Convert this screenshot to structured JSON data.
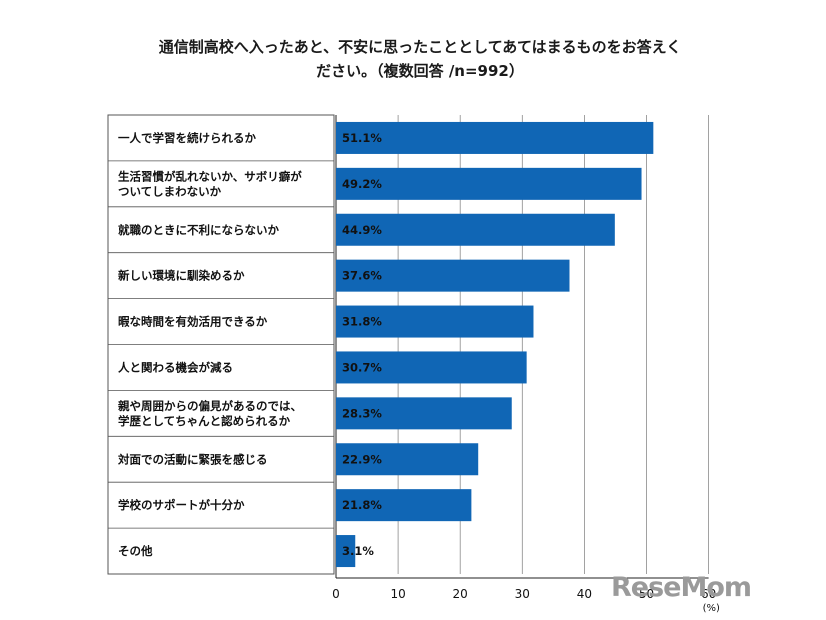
{
  "title_line1": "通信制高校へ入ったあと、不安に思ったこととしてあてはまるものをお答えく",
  "title_line2": "ださい。（複数回答 /n=992）",
  "logo_text": "ReseMom",
  "colors": {
    "bar": "#1066b5",
    "grid": "#8a8a8a",
    "box": "#555555"
  },
  "chart_data": {
    "type": "bar",
    "orientation": "horizontal",
    "categories": [
      "一人で学習を続けられるか",
      "生活習慣が乱れないか、サボリ癖が\nついてしまわないか",
      "就職のときに不利にならないか",
      "新しい環境に馴染めるか",
      "暇な時間を有効活用できるか",
      "人と関わる機会が減る",
      "親や周囲からの偏見があるのでは、\n学歴としてちゃんと認められるか",
      "対面での活動に緊張を感じる",
      "学校のサポートが十分か",
      "その他"
    ],
    "values": [
      51.1,
      49.2,
      44.9,
      37.6,
      31.8,
      30.7,
      28.3,
      22.9,
      21.8,
      3.1
    ],
    "value_labels": [
      "51.1%",
      "49.2%",
      "44.9%",
      "37.6%",
      "31.8%",
      "30.7%",
      "28.3%",
      "22.9%",
      "21.8%",
      "3.1%"
    ],
    "xlim": [
      0,
      60
    ],
    "xticks": [
      "0",
      "10",
      "20",
      "30",
      "40",
      "50",
      "60"
    ],
    "xunit": "(%)"
  }
}
